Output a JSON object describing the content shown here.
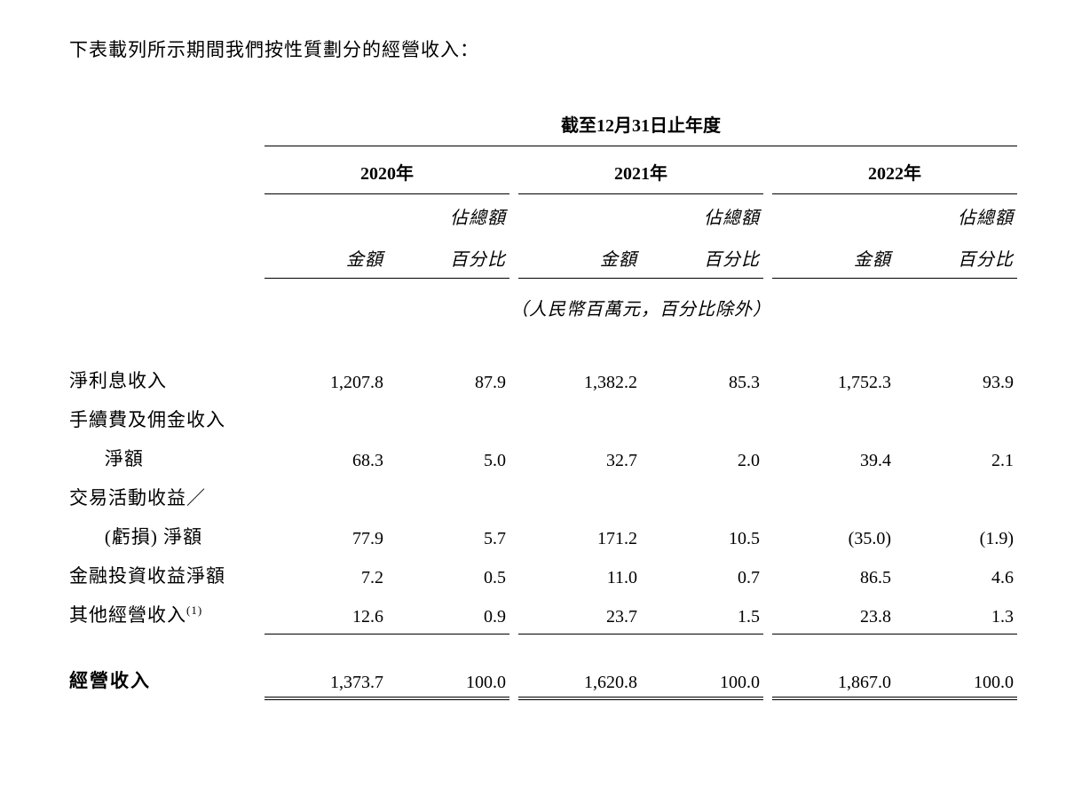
{
  "intro_text": "下表載列所示期間我們按性質劃分的經營收入：",
  "table": {
    "period_header": "截至12月31日止年度",
    "years": [
      "2020年",
      "2021年",
      "2022年"
    ],
    "sub_headers": {
      "amount": "金額",
      "pct_line1": "佔總額",
      "pct_line2": "百分比"
    },
    "unit_note": "（人民幣百萬元，百分比除外）",
    "rows": [
      {
        "label": "淨利息收入",
        "indent": false,
        "continuation": false,
        "values": [
          "1,207.8",
          "87.9",
          "1,382.2",
          "85.3",
          "1,752.3",
          "93.9"
        ]
      },
      {
        "label": "手續費及佣金收入",
        "indent": false,
        "continuation": true,
        "values": [
          "",
          "",
          "",
          "",
          "",
          ""
        ]
      },
      {
        "label": "淨額",
        "indent": true,
        "continuation": false,
        "values": [
          "68.3",
          "5.0",
          "32.7",
          "2.0",
          "39.4",
          "2.1"
        ]
      },
      {
        "label": "交易活動收益／",
        "indent": false,
        "continuation": true,
        "values": [
          "",
          "",
          "",
          "",
          "",
          ""
        ]
      },
      {
        "label": "(虧損) 淨額",
        "indent": true,
        "continuation": false,
        "values": [
          "77.9",
          "5.7",
          "171.2",
          "10.5",
          "(35.0)",
          "(1.9)"
        ]
      },
      {
        "label": "金融投資收益淨額",
        "indent": false,
        "continuation": false,
        "values": [
          "7.2",
          "0.5",
          "11.0",
          "0.7",
          "86.5",
          "4.6"
        ]
      },
      {
        "label": "其他經營收入",
        "footnote": "(1)",
        "indent": false,
        "continuation": false,
        "subtotal_border": true,
        "values": [
          "12.6",
          "0.9",
          "23.7",
          "1.5",
          "23.8",
          "1.3"
        ]
      }
    ],
    "total": {
      "label": "經營收入",
      "values": [
        "1,373.7",
        "100.0",
        "1,620.8",
        "100.0",
        "1,867.0",
        "100.0"
      ]
    },
    "colors": {
      "text": "#000000",
      "background": "#ffffff",
      "border": "#000000"
    },
    "font_sizes": {
      "intro": 21,
      "header": 20,
      "body": 20
    }
  }
}
